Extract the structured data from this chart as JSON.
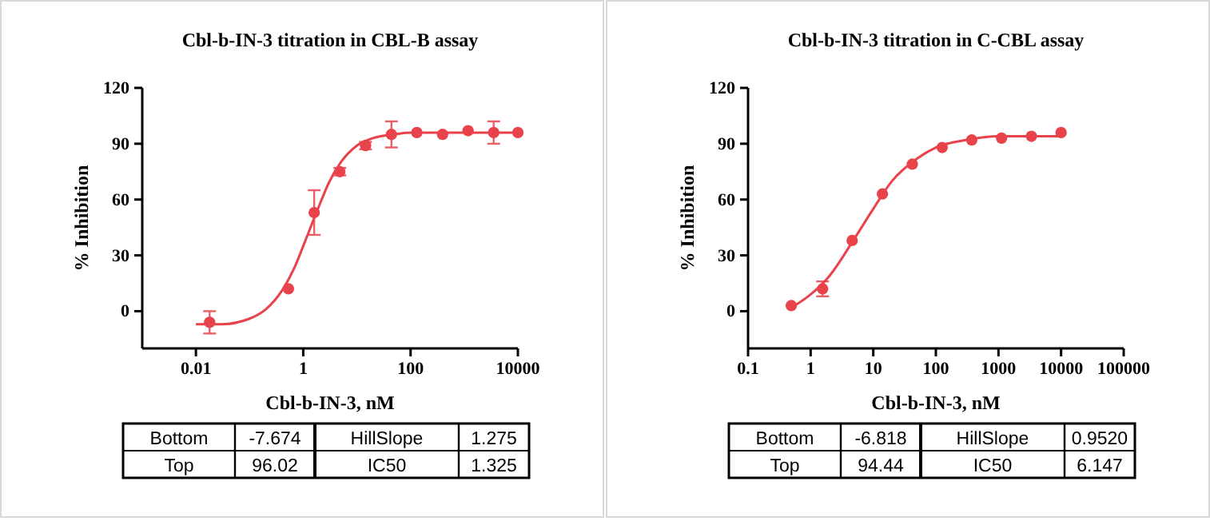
{
  "chart_data": [
    {
      "type": "scatter",
      "title": "Cbl-b-IN-3 titration in CBL-B assay",
      "xlabel": "Cbl-b-IN-3, nM",
      "ylabel": "% Inhibition",
      "log": "x",
      "xlim": [
        0.001,
        10000
      ],
      "xticks": [
        0.01,
        1,
        100,
        10000
      ],
      "ylim": [
        -20,
        120
      ],
      "yticks": [
        0,
        30,
        60,
        90,
        120
      ],
      "grid": false,
      "series": [
        {
          "marker": "circle",
          "color": "#e8434b",
          "x": [
            0.018,
            0.53,
            1.6,
            4.8,
            14.5,
            44,
            131,
            395,
            1180,
            3540,
            10000
          ],
          "values": [
            -6,
            12,
            53,
            75,
            89,
            95,
            96,
            95,
            97,
            96,
            96
          ],
          "errors": [
            6,
            null,
            12,
            2,
            2,
            7,
            null,
            null,
            null,
            6,
            null
          ]
        },
        {
          "type": "line",
          "color": "#e8434b",
          "x": [
            0.01,
            0.03,
            0.1,
            0.2,
            0.4,
            0.7,
            1,
            1.5,
            2,
            3,
            5,
            10,
            20,
            50,
            100,
            1000,
            10000
          ],
          "values": [
            -7,
            -7,
            -4,
            1,
            11,
            24,
            35,
            48,
            57,
            69,
            80,
            89,
            93,
            95,
            96,
            96,
            96
          ]
        }
      ],
      "annotations": [
        "Bottom",
        "-7.674",
        "HillSlope",
        "1.275",
        "Top",
        "96.02",
        "IC50",
        "1.325"
      ]
    },
    {
      "type": "scatter",
      "title": "Cbl-b-IN-3 titration in C-CBL assay",
      "xlabel": "Cbl-b-IN-3, nM",
      "ylabel": "% Inhibition",
      "log": "x",
      "xlim": [
        0.1,
        100000
      ],
      "xticks": [
        0.1,
        1,
        10,
        100,
        1000,
        10000,
        100000
      ],
      "ylim": [
        -20,
        120
      ],
      "yticks": [
        0,
        30,
        60,
        90,
        120
      ],
      "grid": false,
      "series": [
        {
          "marker": "circle",
          "color": "#e8434b",
          "x": [
            0.49,
            1.55,
            4.6,
            14,
            42,
            126,
            374,
            1120,
            3360,
            10000
          ],
          "values": [
            3,
            12,
            38,
            63,
            79,
            88,
            92,
            93,
            94,
            96
          ],
          "errors": [
            null,
            4,
            null,
            null,
            null,
            null,
            null,
            null,
            null,
            null
          ]
        },
        {
          "type": "line",
          "color": "#e8434b",
          "x": [
            0.5,
            1,
            2,
            5,
            10,
            20,
            50,
            100,
            300,
            1000,
            10000
          ],
          "values": [
            2,
            9,
            19,
            39,
            55,
            70,
            82,
            88,
            92,
            94,
            94
          ]
        }
      ],
      "annotations": [
        "Bottom",
        "-6.818",
        "HillSlope",
        "0.9520",
        "Top",
        "94.44",
        "IC50",
        "6.147"
      ]
    }
  ]
}
